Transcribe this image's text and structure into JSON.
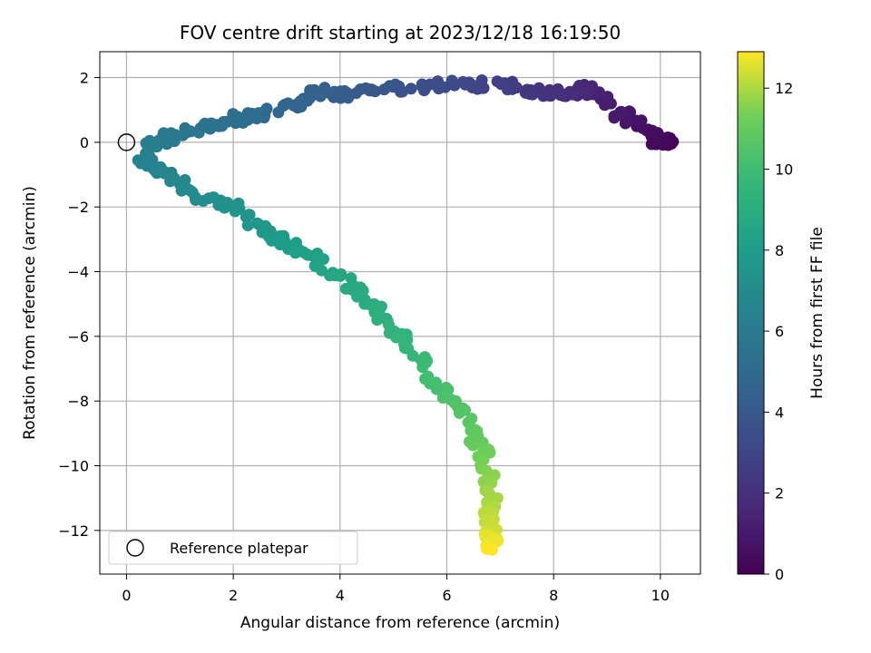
{
  "chart_data": {
    "type": "scatter",
    "title": "FOV centre drift starting at 2023/12/18 16:19:50",
    "xlabel": "Angular distance from reference (arcmin)",
    "ylabel": "Rotation from reference (arcmin)",
    "xlim": [
      -0.5,
      10.75
    ],
    "ylim": [
      -13.35,
      2.8
    ],
    "xticks": [
      0,
      2,
      4,
      6,
      8,
      10
    ],
    "yticks": [
      2,
      0,
      -2,
      -4,
      -6,
      -8,
      -10,
      -12
    ],
    "xtick_labels": [
      "0",
      "2",
      "4",
      "6",
      "8",
      "10"
    ],
    "ytick_labels": [
      "2",
      "0",
      "−2",
      "−4",
      "−6",
      "−8",
      "−10",
      "−12"
    ],
    "grid": true,
    "colormap": "viridis",
    "colorbar": {
      "label": "Hours from first FF file",
      "range": [
        0,
        12.9
      ],
      "ticks": [
        0,
        2,
        4,
        6,
        8,
        10,
        12
      ],
      "tick_labels": [
        "0",
        "2",
        "4",
        "6",
        "8",
        "10",
        "12"
      ]
    },
    "reference_point": {
      "x": 0,
      "y": 0
    },
    "legend": {
      "placement": "lower-left",
      "entries": [
        "Reference platepar"
      ]
    },
    "color_variable": "Hours from first FF file",
    "path_anchors": [
      [
        10.2,
        0.0,
        0.0
      ],
      [
        10.05,
        0.05,
        0.15
      ],
      [
        9.95,
        0.0,
        0.3
      ],
      [
        9.85,
        0.25,
        0.45
      ],
      [
        9.4,
        0.75,
        0.8
      ],
      [
        9.2,
        0.95,
        1.05
      ],
      [
        8.7,
        1.7,
        1.5
      ],
      [
        8.3,
        1.45,
        1.8
      ],
      [
        7.65,
        1.55,
        2.2
      ],
      [
        7.2,
        1.75,
        2.55
      ],
      [
        6.5,
        1.8,
        3.0
      ],
      [
        5.6,
        1.75,
        3.5
      ],
      [
        4.7,
        1.6,
        3.9
      ],
      [
        4.0,
        1.45,
        4.2
      ],
      [
        3.6,
        1.6,
        4.4
      ],
      [
        3.2,
        1.2,
        4.65
      ],
      [
        2.5,
        0.9,
        5.0
      ],
      [
        2.1,
        0.75,
        5.2
      ],
      [
        1.6,
        0.5,
        5.45
      ],
      [
        1.0,
        0.3,
        5.75
      ],
      [
        0.55,
        0.0,
        6.0
      ],
      [
        0.3,
        -0.3,
        6.2
      ],
      [
        0.4,
        -0.7,
        6.45
      ],
      [
        0.9,
        -1.1,
        6.75
      ],
      [
        1.4,
        -1.7,
        7.1
      ],
      [
        2.0,
        -2.0,
        7.4
      ],
      [
        2.6,
        -2.8,
        7.75
      ],
      [
        3.1,
        -3.2,
        8.0
      ],
      [
        3.6,
        -3.7,
        8.3
      ],
      [
        4.2,
        -4.4,
        8.7
      ],
      [
        4.7,
        -5.3,
        9.1
      ],
      [
        5.2,
        -6.1,
        9.5
      ],
      [
        5.7,
        -7.2,
        10.0
      ],
      [
        6.2,
        -8.2,
        10.5
      ],
      [
        6.6,
        -9.3,
        11.0
      ],
      [
        6.8,
        -10.2,
        11.5
      ],
      [
        6.85,
        -11.2,
        12.0
      ],
      [
        6.8,
        -12.0,
        12.4
      ],
      [
        6.85,
        -12.6,
        12.9
      ]
    ]
  }
}
